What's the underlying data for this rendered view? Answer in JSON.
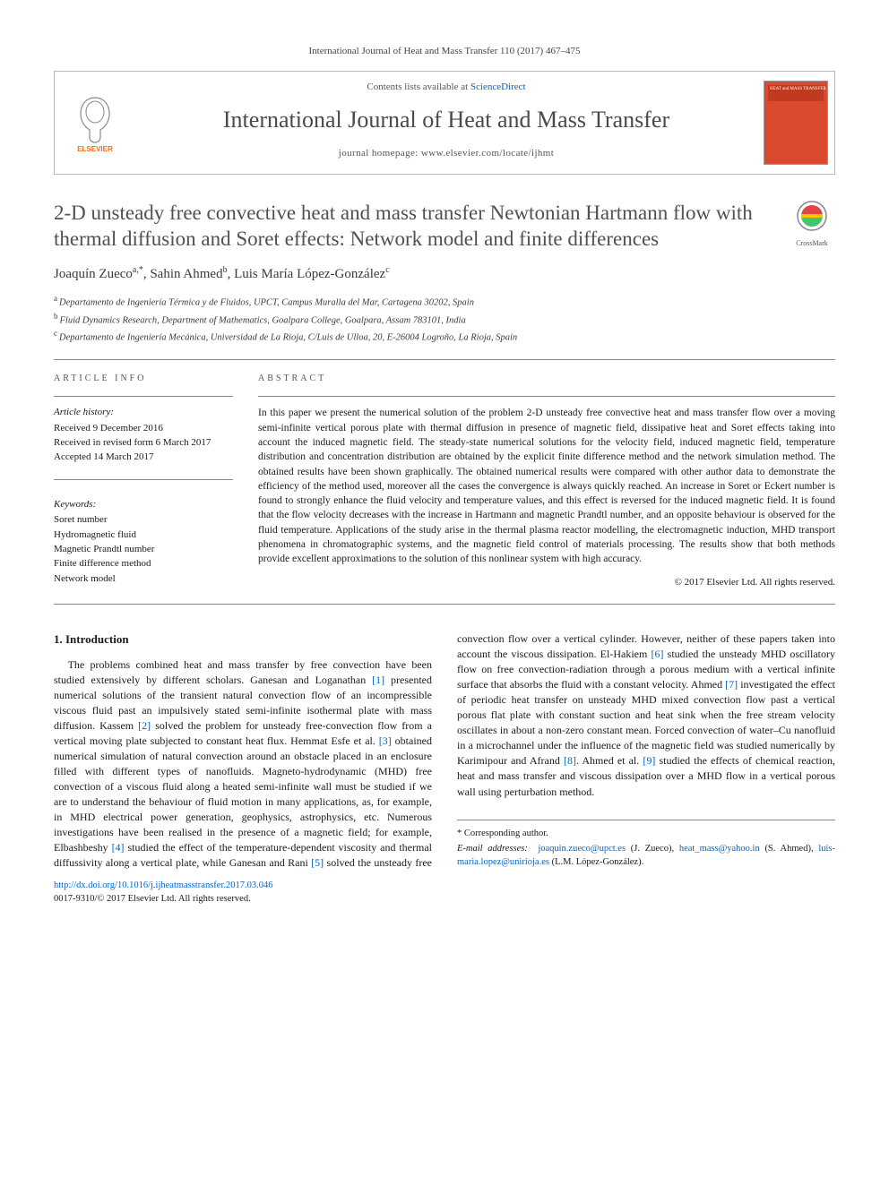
{
  "header": {
    "running_head": "International Journal of Heat and Mass Transfer 110 (2017) 467–475",
    "contents_prefix": "Contents lists available at ",
    "contents_link": "ScienceDirect",
    "journal_name": "International Journal of Heat and Mass Transfer",
    "homepage_prefix": "journal homepage: ",
    "homepage_url": "www.elsevier.com/locate/ijhmt",
    "cover_text": "HEAT and MASS TRANSFER"
  },
  "crossmark_label": "CrossMark",
  "title": "2-D unsteady free convective heat and mass transfer Newtonian Hartmann flow with thermal diffusion and Soret effects: Network model and finite differences",
  "authors_html": "Joaquín Zueco",
  "authors": [
    {
      "name": "Joaquín Zueco",
      "marks": "a,*"
    },
    {
      "name": "Sahin Ahmed",
      "marks": "b"
    },
    {
      "name": "Luis María López-González",
      "marks": "c"
    }
  ],
  "affiliations": [
    {
      "mark": "a",
      "text": "Departamento de Ingeniería Térmica y de Fluidos, UPCT, Campus Muralla del Mar, Cartagena 30202, Spain"
    },
    {
      "mark": "b",
      "text": "Fluid Dynamics Research, Department of Mathematics, Goalpara College, Goalpara, Assam 783101, India"
    },
    {
      "mark": "c",
      "text": "Departamento de Ingeniería Mecánica, Universidad de La Rioja, C/Luis de Ulloa, 20, E-26004 Logroño, La Rioja, Spain"
    }
  ],
  "info": {
    "heading": "ARTICLE INFO",
    "history_label": "Article history:",
    "history": [
      "Received 9 December 2016",
      "Received in revised form 6 March 2017",
      "Accepted 14 March 2017"
    ],
    "keywords_label": "Keywords:",
    "keywords": [
      "Soret number",
      "Hydromagnetic fluid",
      "Magnetic Prandtl number",
      "Finite difference method",
      "Network model"
    ]
  },
  "abstract": {
    "heading": "ABSTRACT",
    "text": "In this paper we present the numerical solution of the problem 2-D unsteady free convective heat and mass transfer flow over a moving semi-infinite vertical porous plate with thermal diffusion in presence of magnetic field, dissipative heat and Soret effects taking into account the induced magnetic field. The steady-state numerical solutions for the velocity field, induced magnetic field, temperature distribution and concentration distribution are obtained by the explicit finite difference method and the network simulation method. The obtained results have been shown graphically. The obtained numerical results were compared with other author data to demonstrate the efficiency of the method used, moreover all the cases the convergence is always quickly reached. An increase in Soret or Eckert number is found to strongly enhance the fluid velocity and temperature values, and this effect is reversed for the induced magnetic field. It is found that the flow velocity decreases with the increase in Hartmann and magnetic Prandtl number, and an opposite behaviour is observed for the fluid temperature. Applications of the study arise in the thermal plasma reactor modelling, the electromagnetic induction, MHD transport phenomena in chromatographic systems, and the magnetic field control of materials processing. The results show that both methods provide excellent approximations to the solution of this nonlinear system with high accuracy.",
    "copyright": "© 2017 Elsevier Ltd. All rights reserved."
  },
  "intro": {
    "heading": "1. Introduction",
    "para1_a": "The problems combined heat and mass transfer by free convection have been studied extensively by different scholars. Ganesan and Loganathan ",
    "c1": "[1]",
    "para1_b": " presented numerical solutions of the transient natural convection flow of an incompressible viscous fluid past an impulsively stated semi-infinite isothermal plate with mass diffusion. Kassem ",
    "c2": "[2]",
    "para1_c": " solved the problem for unsteady free-convection flow from a vertical moving plate subjected to constant heat flux. Hemmat Esfe et al. ",
    "c3": "[3]",
    "para1_d": " obtained numerical simulation of natural convection around an obstacle placed in an enclosure filled with different types of nanofluids. Magneto-hydrodynamic (MHD) free convection of a viscous fluid along a heated semi-infinite wall must be studied if we are to understand the behaviour of fluid motion in many applications, as, for example, in MHD electrical power gener",
    "para1_e": "ation, geophysics, astrophysics, etc. Numerous investigations have been realised in the presence of a magnetic field; for example, Elbashbeshy ",
    "c4": "[4]",
    "para1_f": " studied the effect of the temperature-dependent viscosity and thermal diffussivity along a vertical plate, while Ganesan and Rani ",
    "c5": "[5]",
    "para1_g": " solved the unsteady free convection flow over a vertical cylinder. However, neither of these papers taken into account the viscous dissipation. El-Hakiem ",
    "c6": "[6]",
    "para1_h": " studied the unsteady MHD oscillatory flow on free convection-radiation through a porous medium with a vertical infinite surface that absorbs the fluid with a constant velocity. Ahmed ",
    "c7": "[7]",
    "para1_i": " investigated the effect of periodic heat transfer on unsteady MHD mixed convection flow past a vertical porous flat plate with constant suction and heat sink when the free stream velocity oscillates in about a non-zero constant mean. Forced convection of water–Cu nanofluid in a microchannel under the influence of the magnetic field was studied numerically by Karimipour and Afrand ",
    "c8": "[8]",
    "para1_j": ". Ahmed et al. ",
    "c9": "[9]",
    "para1_k": " studied the effects of chemical reaction, heat and mass transfer and viscous dissipation over a MHD flow in a vertical porous wall using perturbation method."
  },
  "footer": {
    "corr_label": "* Corresponding author.",
    "email_label": "E-mail addresses:",
    "emails": [
      {
        "addr": "joaquin.zueco@upct.es",
        "who": "(J. Zueco)"
      },
      {
        "addr": "heat_mass@yahoo.in",
        "who": "(S. Ahmed)"
      },
      {
        "addr": "luis-maria.lopez@unirioja.es",
        "who": "(L.M. López-González)"
      }
    ],
    "doi": "http://dx.doi.org/10.1016/j.ijheatmasstransfer.2017.03.046",
    "issn": "0017-9310/© 2017 Elsevier Ltd. All rights reserved."
  },
  "colors": {
    "link": "#0066cc",
    "text": "#1a1a1a",
    "muted": "#555555",
    "rule": "#888888",
    "cover_bg": "#d94a2e",
    "elsevier_orange": "#ff6a13"
  }
}
